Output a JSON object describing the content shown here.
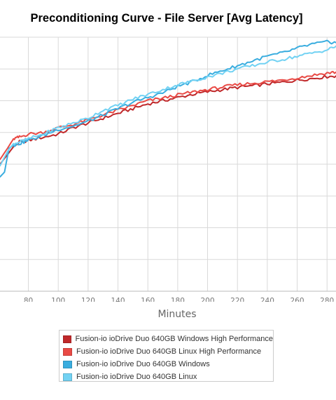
{
  "chart_data": {
    "type": "line",
    "title": "Preconditioning Curve - File Server [Avg Latency]",
    "xlabel": "Minutes",
    "ylabel": "",
    "xlim": [
      61,
      286
    ],
    "ylim": [
      0,
      8
    ],
    "x_ticks": [
      80,
      100,
      120,
      140,
      160,
      180,
      200,
      220,
      240,
      260,
      280
    ],
    "y_gridlines": [
      1,
      2,
      3,
      4,
      5,
      6,
      7,
      8
    ],
    "grid": true,
    "legend_position": "bottom",
    "series": [
      {
        "name": "Fusion-io ioDrive Duo 640GB Windows High Performance",
        "color": "#c0282a",
        "x": [
          61,
          66,
          70,
          74,
          80,
          90,
          100,
          110,
          120,
          130,
          140,
          150,
          160,
          170,
          180,
          190,
          200,
          210,
          220,
          230,
          240,
          250,
          260,
          270,
          280,
          286
        ],
        "y": [
          4.0,
          4.3,
          4.55,
          4.7,
          4.75,
          4.85,
          4.95,
          5.15,
          5.3,
          5.45,
          5.6,
          5.75,
          5.9,
          6.0,
          6.1,
          6.2,
          6.28,
          6.35,
          6.42,
          6.47,
          6.53,
          6.58,
          6.65,
          6.7,
          6.76,
          6.78
        ]
      },
      {
        "name": "Fusion-io ioDrive Duo 640GB Linux High Performance",
        "color": "#e94a45",
        "x": [
          61,
          66,
          70,
          74,
          80,
          90,
          100,
          110,
          120,
          130,
          140,
          150,
          160,
          170,
          180,
          190,
          200,
          210,
          220,
          230,
          240,
          250,
          260,
          270,
          280,
          286
        ],
        "y": [
          4.15,
          4.5,
          4.8,
          4.85,
          4.95,
          5.0,
          5.15,
          5.25,
          5.4,
          5.55,
          5.7,
          5.85,
          6.0,
          6.08,
          6.18,
          6.27,
          6.35,
          6.43,
          6.5,
          6.55,
          6.6,
          6.65,
          6.72,
          6.8,
          6.87,
          6.9
        ]
      },
      {
        "name": "Fusion-io ioDrive Duo 640GB Windows",
        "color": "#3aaddf",
        "x": [
          61,
          64,
          67,
          70,
          74,
          80,
          90,
          100,
          110,
          120,
          130,
          140,
          150,
          160,
          170,
          180,
          190,
          200,
          210,
          220,
          230,
          240,
          250,
          260,
          270,
          280,
          286
        ],
        "y": [
          3.6,
          3.75,
          4.5,
          4.6,
          4.65,
          4.75,
          4.9,
          5.1,
          5.2,
          5.35,
          5.55,
          5.75,
          5.95,
          6.1,
          6.25,
          6.45,
          6.6,
          6.8,
          6.95,
          7.1,
          7.25,
          7.4,
          7.5,
          7.65,
          7.78,
          7.85,
          7.83
        ]
      },
      {
        "name": "Fusion-io ioDrive Duo 640GB Linux",
        "color": "#72d2f3",
        "x": [
          61,
          66,
          70,
          74,
          80,
          90,
          100,
          110,
          120,
          130,
          140,
          150,
          160,
          170,
          180,
          190,
          200,
          210,
          220,
          230,
          240,
          250,
          260,
          270,
          280,
          286
        ],
        "y": [
          3.95,
          4.4,
          4.65,
          4.7,
          4.8,
          4.95,
          5.15,
          5.3,
          5.45,
          5.7,
          5.85,
          6.05,
          6.2,
          6.35,
          6.5,
          6.62,
          6.75,
          6.87,
          7.0,
          7.1,
          7.22,
          7.3,
          7.4,
          7.5,
          7.6,
          7.72
        ]
      }
    ]
  }
}
